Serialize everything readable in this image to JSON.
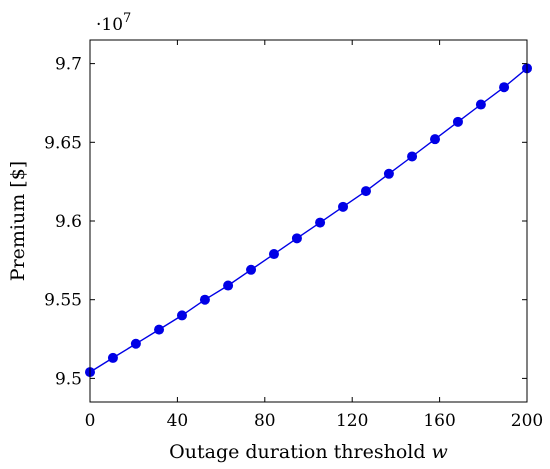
{
  "chart_data": {
    "type": "line",
    "xlabel": "Outage duration threshold",
    "xlabel_var": "w",
    "ylabel": "Premium [$]",
    "y_scale_multiplier": "·10",
    "y_scale_exponent": "7",
    "xlim": [
      0,
      200
    ],
    "ylim": [
      9.485,
      9.715
    ],
    "x_ticks": [
      "0",
      "40",
      "80",
      "120",
      "160",
      "200"
    ],
    "x_tick_values": [
      0,
      40,
      80,
      120,
      160,
      200
    ],
    "y_ticks": [
      "9.5",
      "9.55",
      "9.6",
      "9.65",
      "9.7"
    ],
    "y_tick_values": [
      9.5,
      9.55,
      9.6,
      9.65,
      9.7
    ],
    "grid": false,
    "legend": "none",
    "color": "#0000e6",
    "series": [
      {
        "x": [
          0,
          10.5,
          21,
          31.6,
          42.1,
          52.6,
          63.2,
          73.7,
          84.2,
          94.7,
          105.3,
          115.8,
          126.3,
          136.8,
          147.4,
          157.9,
          168.4,
          178.9,
          189.5,
          200
        ],
        "y": [
          9.504,
          9.513,
          9.522,
          9.531,
          9.54,
          9.55,
          9.559,
          9.569,
          9.579,
          9.589,
          9.599,
          9.609,
          9.619,
          9.63,
          9.641,
          9.652,
          9.663,
          9.674,
          9.685,
          9.697
        ]
      }
    ]
  }
}
